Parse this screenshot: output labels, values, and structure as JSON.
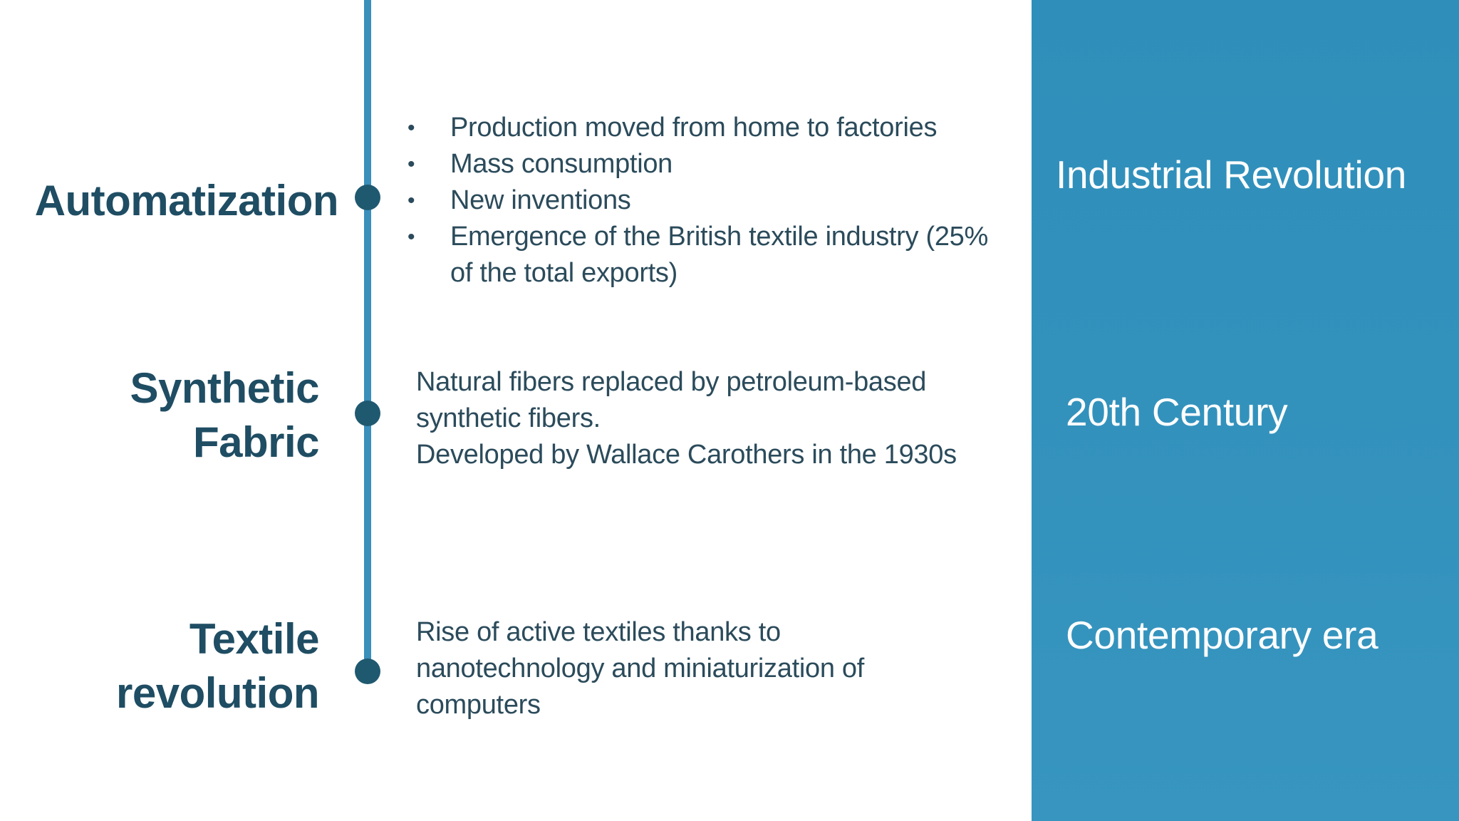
{
  "timeline": [
    {
      "topic": "Automatization",
      "bullets": [
        "Production moved from home to factories",
        "Mass consumption",
        "New inventions",
        "Emergence of the British textile industry (25% of the total exports)"
      ],
      "era": "Industrial Revolution"
    },
    {
      "topic_lines": [
        "Synthetic",
        "Fabric"
      ],
      "description_lines": [
        "Natural fibers replaced by petroleum-based synthetic fibers.",
        "Developed by Wallace Carothers in the 1930s"
      ],
      "era": "20th Century"
    },
    {
      "topic_lines": [
        "Textile",
        "revolution"
      ],
      "description_lines": [
        "Rise of active textiles thanks to nanotechnology and miniaturization of computers"
      ],
      "era": "Contemporary era"
    }
  ],
  "colors": {
    "timeline_line": "#3a8fbb",
    "timeline_dot": "#1f5970",
    "topic_text": "#1f4d63",
    "body_text": "#2b4b5b",
    "era_panel": "#3390bb",
    "era_text": "#ffffff"
  }
}
